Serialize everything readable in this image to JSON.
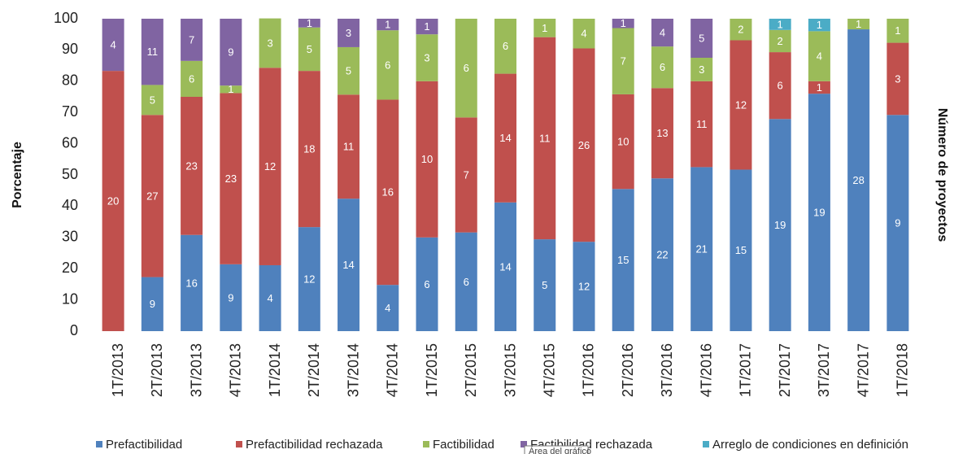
{
  "chart_data": {
    "type": "stacked_bar",
    "y_label": "Porcentaje",
    "y2_label": "Número de proyectos",
    "tooltip": "Área del gráfico",
    "categories": [
      "1T/2013",
      "2T/2013",
      "3T/2013",
      "4T/2013",
      "1T/2014",
      "2T/2014",
      "3T/2014",
      "4T/2014",
      "1T/2015",
      "2T/2015",
      "3T/2015",
      "4T/2015",
      "1T/2016",
      "2T/2016",
      "3T/2016",
      "4T/2016",
      "1T/2017",
      "2T/2017",
      "3T/2017",
      "4T/2017",
      "1T/2018"
    ],
    "ylim": [
      0,
      100
    ],
    "yticks": [
      0,
      10,
      20,
      30,
      40,
      50,
      60,
      70,
      80,
      90,
      100
    ],
    "series": [
      {
        "name": "Prefactibilidad",
        "color": "#4f81bd",
        "values": [
          0,
          17.3,
          30.8,
          21.4,
          21.1,
          33.3,
          42.4,
          14.8,
          30,
          31.6,
          41.2,
          29.4,
          28.6,
          45.5,
          48.9,
          52.5,
          51.7,
          67.9,
          76,
          96.6,
          69.2
        ],
        "counts": [
          null,
          9,
          16,
          9,
          4,
          12,
          14,
          4,
          6,
          6,
          14,
          5,
          12,
          15,
          22,
          21,
          15,
          19,
          19,
          28,
          9
        ]
      },
      {
        "name": "Prefactibilidad rechazada",
        "color": "#c0504d",
        "values": [
          83.3,
          51.9,
          44.2,
          54.8,
          63.2,
          50,
          33.3,
          59.3,
          50,
          36.8,
          41.2,
          64.7,
          61.9,
          30.3,
          28.9,
          27.5,
          41.4,
          21.4,
          4,
          0,
          23.1
        ],
        "counts": [
          20,
          27,
          23,
          23,
          12,
          18,
          11,
          16,
          10,
          7,
          14,
          11,
          26,
          10,
          13,
          11,
          12,
          6,
          1,
          null,
          3
        ]
      },
      {
        "name": "Factibilidad",
        "color": "#9bbb59",
        "values": [
          0,
          9.6,
          11.5,
          2.4,
          15.8,
          13.9,
          15.2,
          22.2,
          15,
          31.6,
          17.6,
          5.9,
          9.5,
          21.2,
          13.3,
          7.5,
          6.9,
          7.1,
          16,
          3.4,
          7.7
        ],
        "counts": [
          null,
          5,
          6,
          1,
          3,
          5,
          5,
          6,
          3,
          6,
          6,
          1,
          4,
          7,
          6,
          3,
          2,
          2,
          4,
          1,
          1
        ]
      },
      {
        "name": "Factibilidad rechazada",
        "color": "#8064a2",
        "values": [
          16.7,
          21.2,
          13.5,
          21.4,
          0,
          2.8,
          9.1,
          3.7,
          5,
          0,
          0,
          0,
          0,
          3,
          8.9,
          12.5,
          0,
          0,
          0,
          0,
          0
        ],
        "counts": [
          4,
          11,
          7,
          9,
          null,
          1,
          3,
          1,
          1,
          null,
          null,
          null,
          null,
          1,
          4,
          5,
          null,
          null,
          null,
          null,
          null
        ]
      },
      {
        "name": "Arreglo de condiciones en definición",
        "color": "#4bacc6",
        "values": [
          0,
          0,
          0,
          0,
          0,
          0,
          0,
          0,
          0,
          0,
          0,
          0,
          0,
          0,
          0,
          0,
          0,
          3.6,
          4,
          0,
          0
        ],
        "counts": [
          null,
          null,
          null,
          null,
          null,
          null,
          null,
          null,
          null,
          null,
          null,
          null,
          null,
          null,
          null,
          null,
          null,
          1,
          1,
          null,
          null
        ]
      }
    ]
  }
}
